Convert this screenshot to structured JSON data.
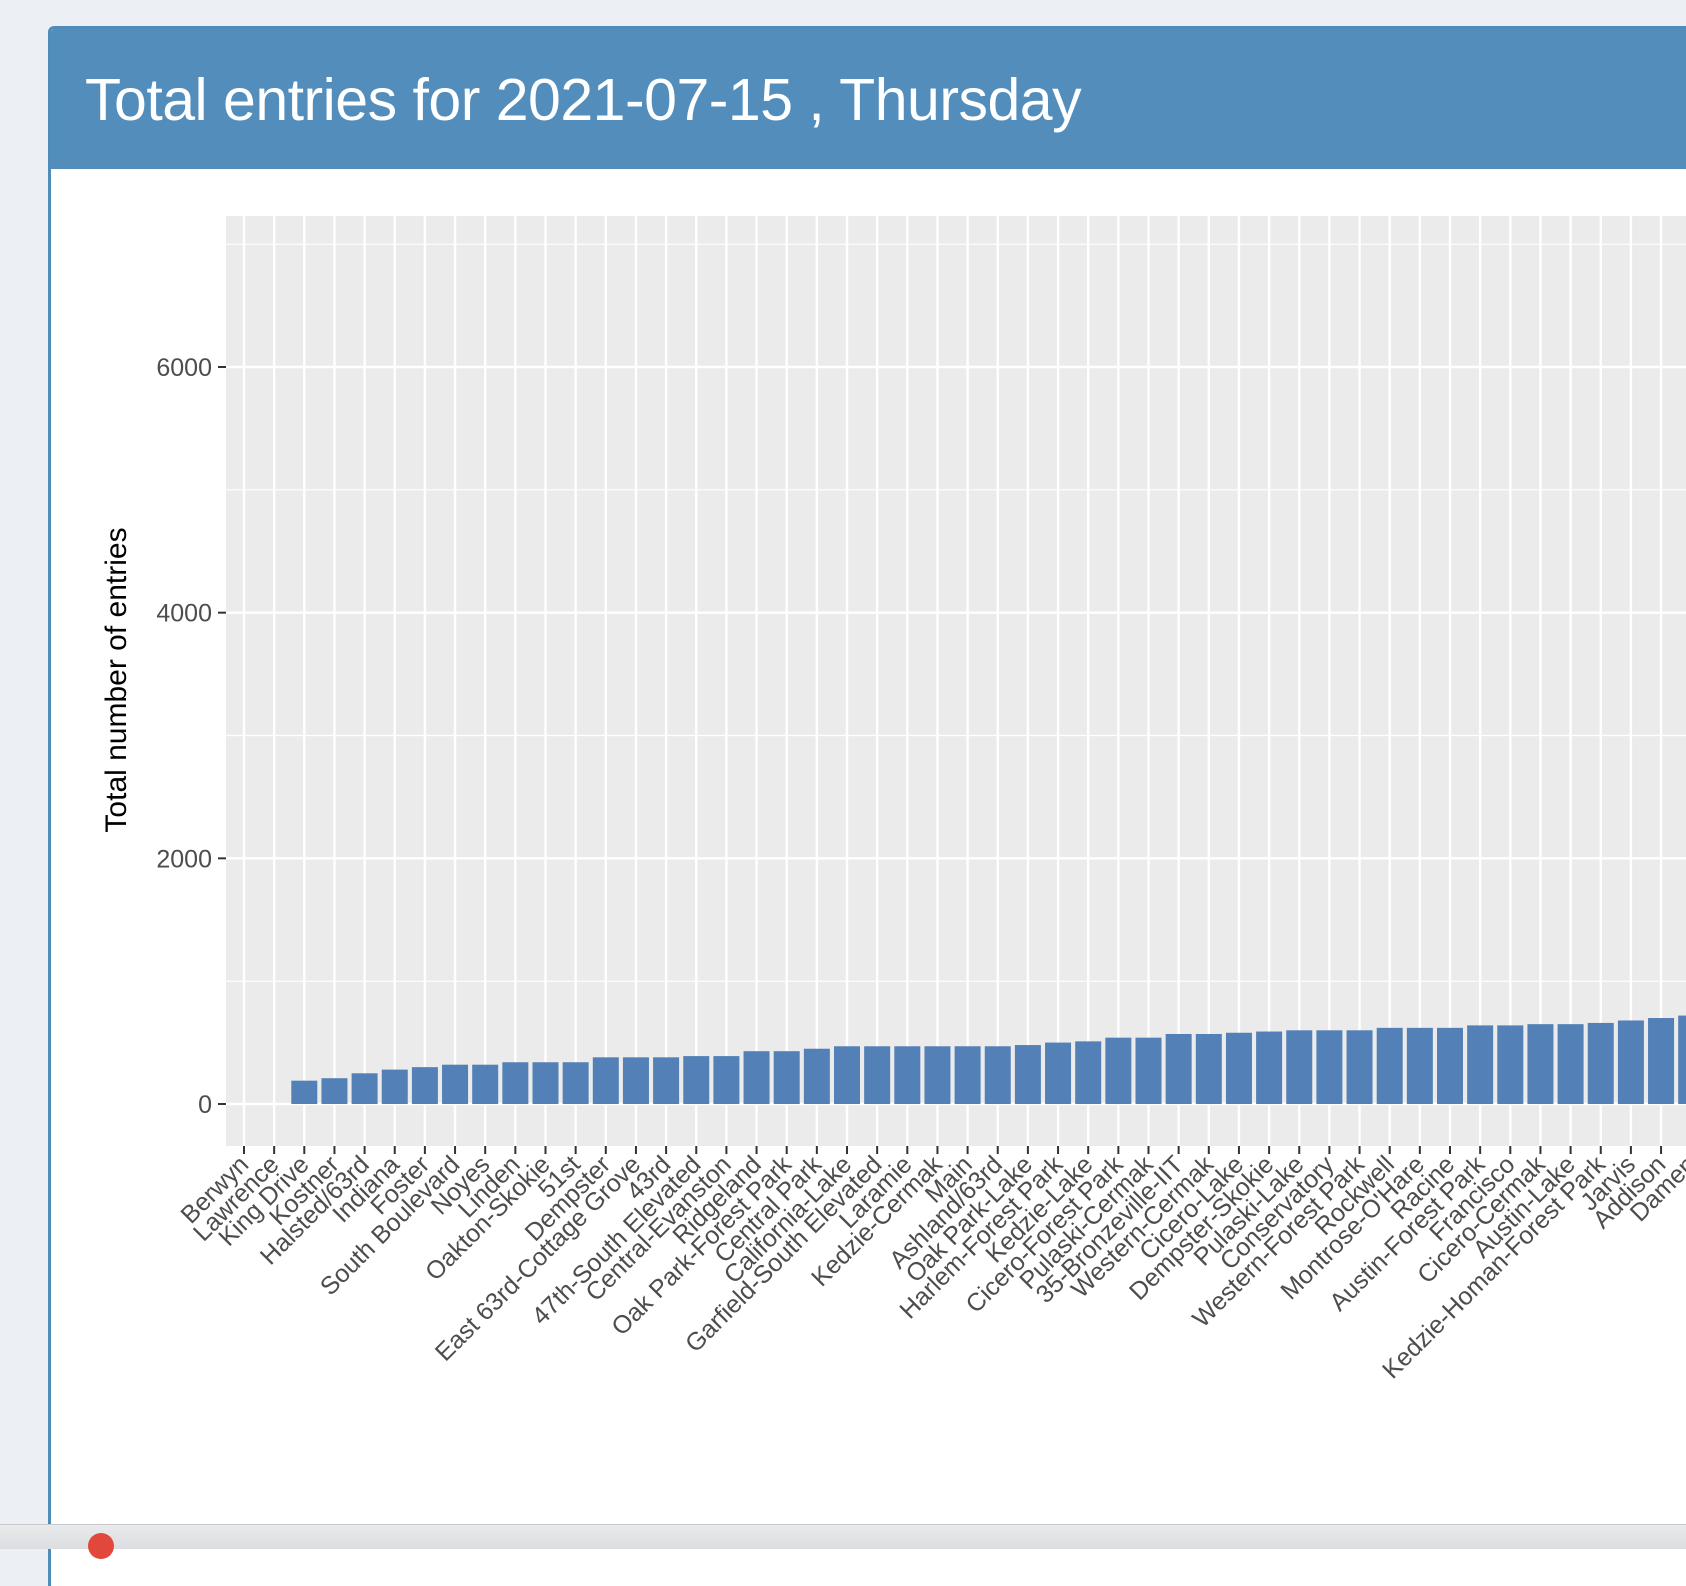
{
  "box": {
    "title": "Total entries for 2021-07-15 , Thursday"
  },
  "colors": {
    "header": "#528dbb",
    "bar": "#5380b6",
    "panel": "#ebebeb",
    "grid": "#ffffff"
  },
  "chart_data": {
    "type": "bar",
    "title": "",
    "xlabel": "",
    "ylabel": "Total number of entries",
    "ylim": [
      0,
      7200
    ],
    "yticks": [
      0,
      2000,
      4000,
      6000
    ],
    "grid": true,
    "legend": "none",
    "bar_color": "#5380b6",
    "categories": [
      "Berwyn",
      "Lawrence",
      "King Drive",
      "Kostner",
      "Halsted/63rd",
      "Indiana",
      "Foster",
      "South Boulevard",
      "Noyes",
      "Linden",
      "Oakton-Skokie",
      "51st",
      "Dempster",
      "East 63rd-Cottage Grove",
      "43rd",
      "47th-South Elevated",
      "Central-Evanston",
      "Ridgeland",
      "Oak Park-Forest Park",
      "Central Park",
      "California-Lake",
      "Garfield-South Elevated",
      "Laramie",
      "Kedzie-Cermak",
      "Main",
      "Ashland/63rd",
      "Oak Park-Lake",
      "Harlem-Forest Park",
      "Kedzie-Lake",
      "Cicero-Forest Park",
      "Pulaski-Cermak",
      "35-Bronzeville-IIT",
      "Western-Cermak",
      "Cicero-Lake",
      "Dempster-Skokie",
      "Pulaski-Lake",
      "Conservatory",
      "Western-Forest Park",
      "Rockwell",
      "Montrose-O'Hare",
      "Racine",
      "Austin-Forest Park",
      "Francisco",
      "Cicero-Cermak",
      "Austin-Lake",
      "Kedzie-Homan-Forest Park",
      "Jarvis",
      "Addison",
      "Damen"
    ],
    "values": [
      0,
      0,
      190,
      210,
      250,
      280,
      300,
      320,
      320,
      340,
      340,
      340,
      380,
      380,
      380,
      390,
      390,
      430,
      430,
      450,
      470,
      470,
      470,
      470,
      470,
      470,
      480,
      500,
      510,
      540,
      540,
      570,
      570,
      580,
      590,
      600,
      600,
      600,
      620,
      620,
      620,
      640,
      640,
      650,
      650,
      660,
      680,
      700,
      720
    ]
  }
}
